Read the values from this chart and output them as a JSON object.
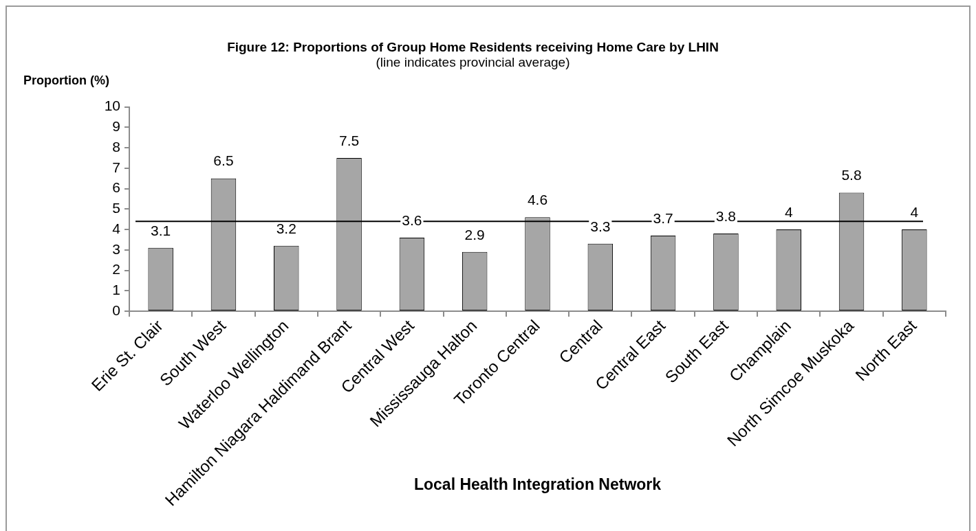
{
  "chart_data": {
    "type": "bar",
    "title": "Figure 12: Proportions of Group Home Residents receiving Home Care by LHIN",
    "subtitle": "(line indicates provincial average)",
    "xlabel": "Local Health Integration Network",
    "ylabel": "Proportion (%)",
    "categories": [
      "Erie St. Clair",
      "South West",
      "Waterloo Wellington",
      "Hamilton Niagara Haldimand Brant",
      "Central West",
      "Mississauga Halton",
      "Toronto Central",
      "Central",
      "Central East",
      "South East",
      "Champlain",
      "North Simcoe Muskoka",
      "North East"
    ],
    "values": [
      3.1,
      6.5,
      3.2,
      7.5,
      3.6,
      2.9,
      4.6,
      3.3,
      3.7,
      3.8,
      4,
      5.8,
      4
    ],
    "color": "#a6a6a6",
    "ylim": [
      0,
      10
    ],
    "yticks": [
      0,
      1,
      2,
      3,
      4,
      5,
      6,
      7,
      8,
      9,
      10
    ],
    "grid": false,
    "data_labels": true,
    "ref_lines": [
      {
        "axis": "y",
        "value": 4.4,
        "color": "#000000"
      }
    ]
  }
}
